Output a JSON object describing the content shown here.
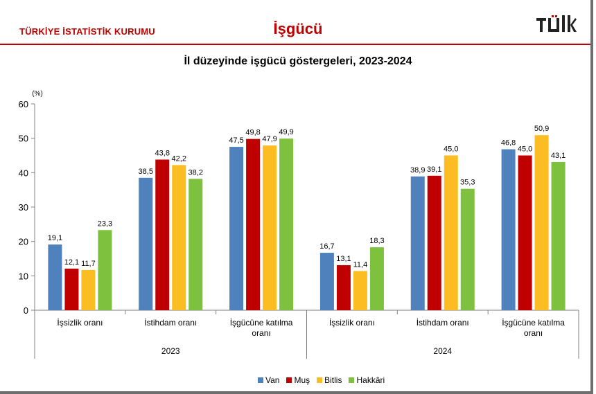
{
  "header": {
    "organization": "TÜRKİYE İSTATİSTİK KURUMU",
    "title": "İşgücü",
    "logo_text": "TÜİK"
  },
  "chart_data": {
    "type": "bar",
    "title": "İl düzeyinde işgücü göstergeleri, 2023-2024",
    "unit_label": "(%)",
    "ylim": [
      0,
      60
    ],
    "yticks": [
      0,
      10,
      20,
      30,
      40,
      50,
      60
    ],
    "grid": false,
    "legend_position": "bottom",
    "groups": [
      {
        "year": "2023",
        "categories": [
          "İşsizlik oranı",
          "İstihdam oranı",
          "İşgücüne katılma oranı"
        ]
      },
      {
        "year": "2024",
        "categories": [
          "İşsizlik oranı",
          "İstihdam oranı",
          "İşgücüne katılma oranı"
        ]
      }
    ],
    "series": [
      {
        "name": "Van",
        "color": "#4f81bd",
        "values": [
          19.1,
          38.5,
          47.5,
          16.7,
          38.9,
          46.8
        ],
        "labels": [
          "19,1",
          "38,5",
          "47,5",
          "16,7",
          "38,9",
          "46,8"
        ]
      },
      {
        "name": "Muş",
        "color": "#c00000",
        "values": [
          12.1,
          43.8,
          49.8,
          13.1,
          39.1,
          45.0
        ],
        "labels": [
          "12,1",
          "43,8",
          "49,8",
          "13,1",
          "39,1",
          "45,0"
        ]
      },
      {
        "name": "Bitlis",
        "color": "#fbbd21",
        "values": [
          11.7,
          42.2,
          47.9,
          11.4,
          45.0,
          50.9
        ],
        "labels": [
          "11,7",
          "42,2",
          "47,9",
          "11,4",
          "45,0",
          "50,9"
        ]
      },
      {
        "name": "Hakkâri",
        "color": "#7dc13f",
        "values": [
          23.3,
          38.2,
          49.9,
          18.3,
          35.3,
          43.1
        ],
        "labels": [
          "23,3",
          "38,2",
          "49,9",
          "18,3",
          "35,3",
          "43,1"
        ]
      }
    ]
  }
}
